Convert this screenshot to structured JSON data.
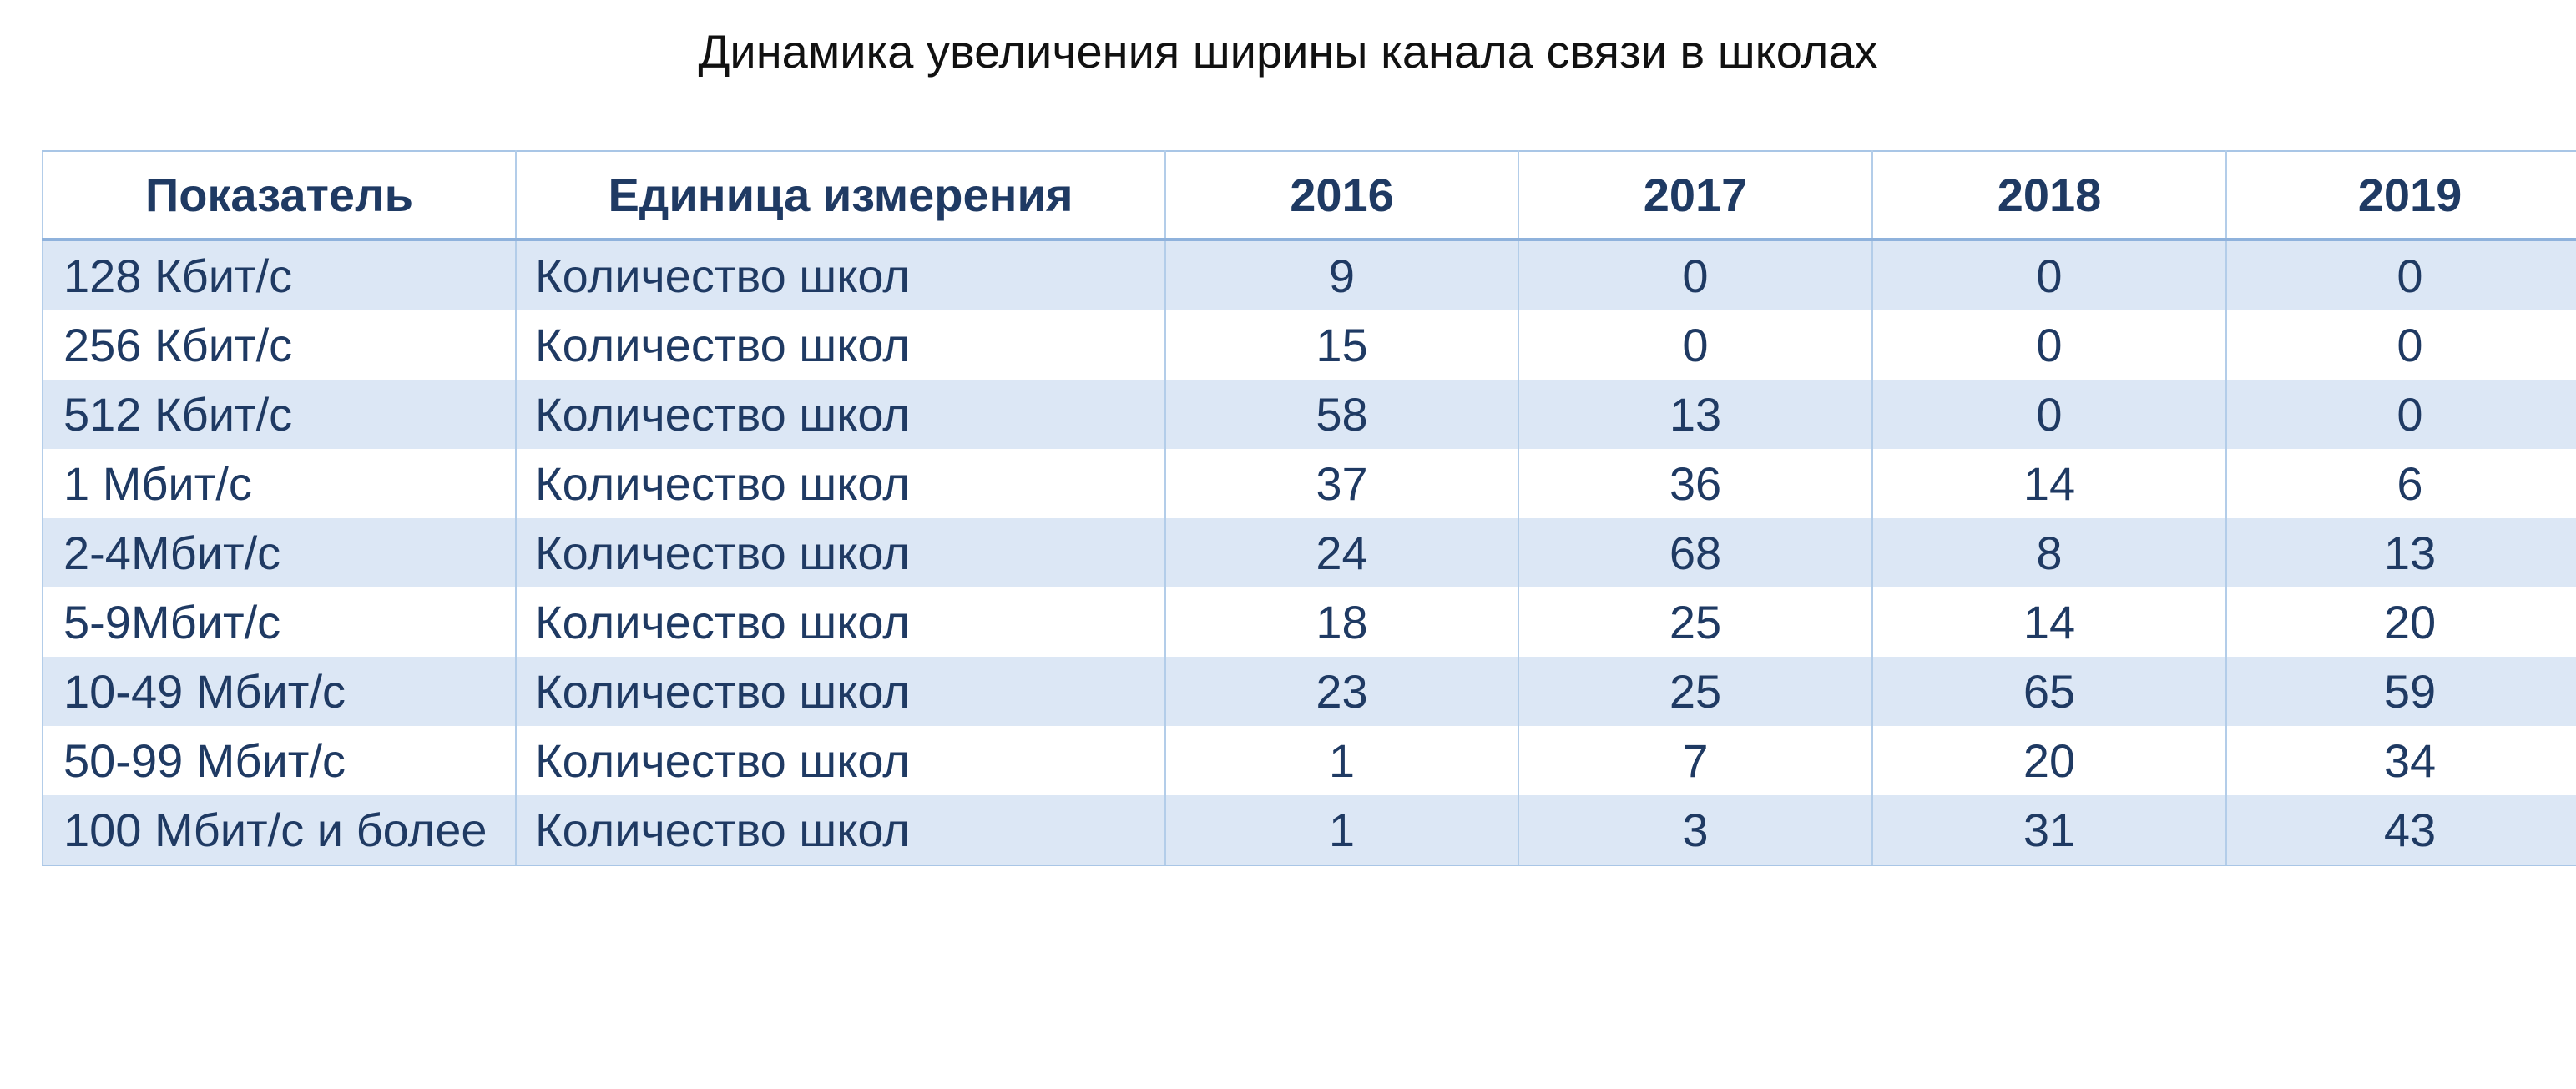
{
  "title": "Динамика увеличения ширины канала связи в школах",
  "table": {
    "headers": [
      "Показатель",
      "Единица измерения",
      "2016",
      "2017",
      "2018",
      "2019"
    ],
    "rows": [
      {
        "indicator": "128 Кбит/с",
        "unit": "Количество школ",
        "values": [
          "9",
          "0",
          "0",
          "0"
        ]
      },
      {
        "indicator": "256 Кбит/с",
        "unit": "Количество школ",
        "values": [
          "15",
          "0",
          "0",
          "0"
        ]
      },
      {
        "indicator": "512 Кбит/с",
        "unit": "Количество школ",
        "values": [
          "58",
          "13",
          "0",
          "0"
        ]
      },
      {
        "indicator": "1 Мбит/с",
        "unit": "Количество школ",
        "values": [
          "37",
          "36",
          "14",
          "6"
        ]
      },
      {
        "indicator": "2-4Мбит/с",
        "unit": "Количество школ",
        "values": [
          "24",
          "68",
          "8",
          "13"
        ]
      },
      {
        "indicator": "5-9Мбит/с",
        "unit": "Количество школ",
        "values": [
          "18",
          "25",
          "14",
          "20"
        ]
      },
      {
        "indicator": "10-49 Мбит/с",
        "unit": "Количество школ",
        "values": [
          "23",
          "25",
          "65",
          "59"
        ]
      },
      {
        "indicator": "50-99 Мбит/с",
        "unit": "Количество школ",
        "values": [
          "1",
          "7",
          "20",
          "34"
        ]
      },
      {
        "indicator": "100 Мбит/с и более",
        "unit": "Количество школ",
        "values": [
          "1",
          "3",
          "31",
          "43"
        ]
      }
    ]
  },
  "colors": {
    "header_text": "#1f3a63",
    "band": "#dce7f5",
    "border": "#b3cde9"
  }
}
